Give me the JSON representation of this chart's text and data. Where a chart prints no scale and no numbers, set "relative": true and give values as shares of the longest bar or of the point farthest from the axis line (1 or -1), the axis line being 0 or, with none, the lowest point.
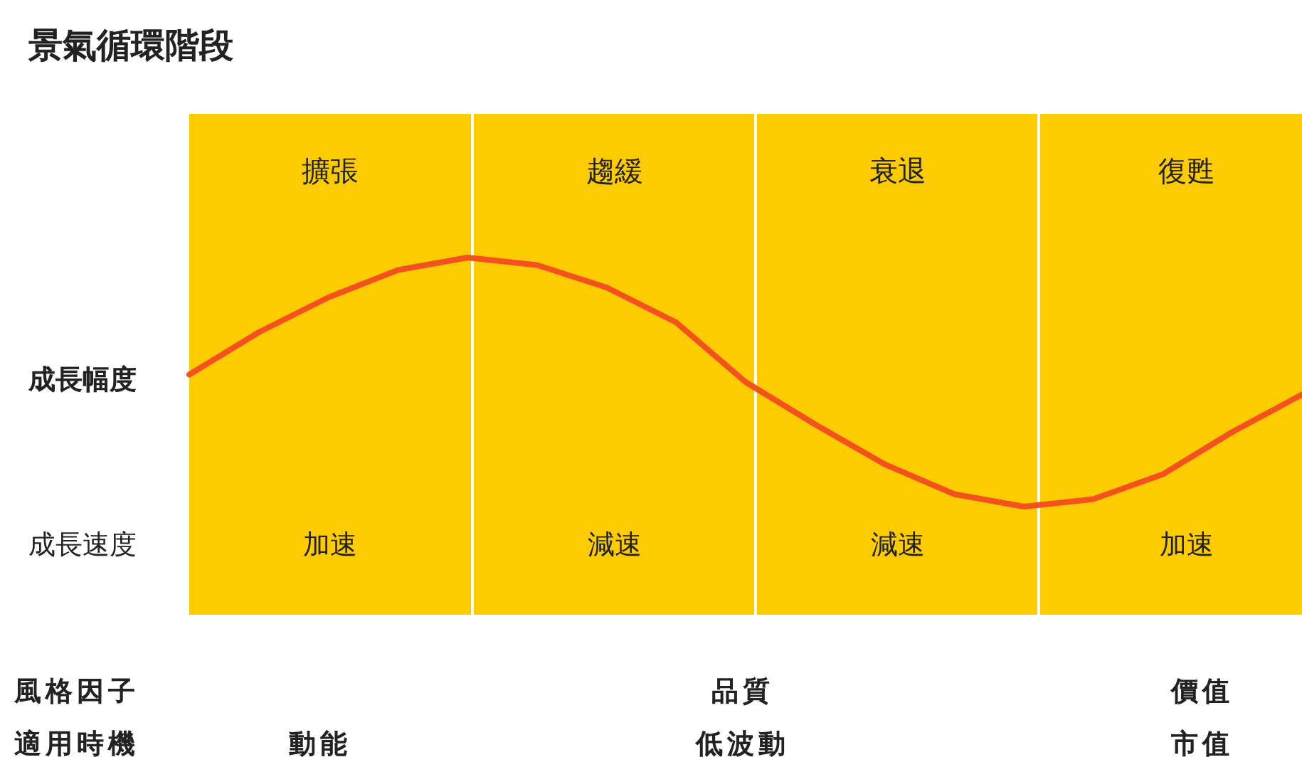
{
  "chart_data": {
    "type": "line",
    "title": "景氣循環階段",
    "ylabel": "成長幅度",
    "relative": true,
    "tick_labels": false,
    "categories": [
      null,
      null,
      null,
      null,
      null,
      null,
      null,
      null,
      null,
      null,
      null,
      null,
      null,
      null,
      null,
      null,
      null
    ],
    "series": [
      {
        "color": "#f4511e",
        "values": [
          0.53,
          0.7,
          0.84,
          0.95,
          1,
          0.97,
          0.88,
          0.74,
          0.5,
          0.33,
          0.17,
          0.05,
          0,
          0.03,
          0.13,
          0.3,
          0.45
        ]
      }
    ],
    "annotations": [
      "擴張",
      "趨緩",
      "衰退",
      "復甦",
      "成長速度",
      "加速",
      "減速",
      "減速",
      "加速",
      "風格因子",
      "品質",
      "價值",
      "適用時機",
      "動能",
      "低波動",
      "市值"
    ]
  }
}
